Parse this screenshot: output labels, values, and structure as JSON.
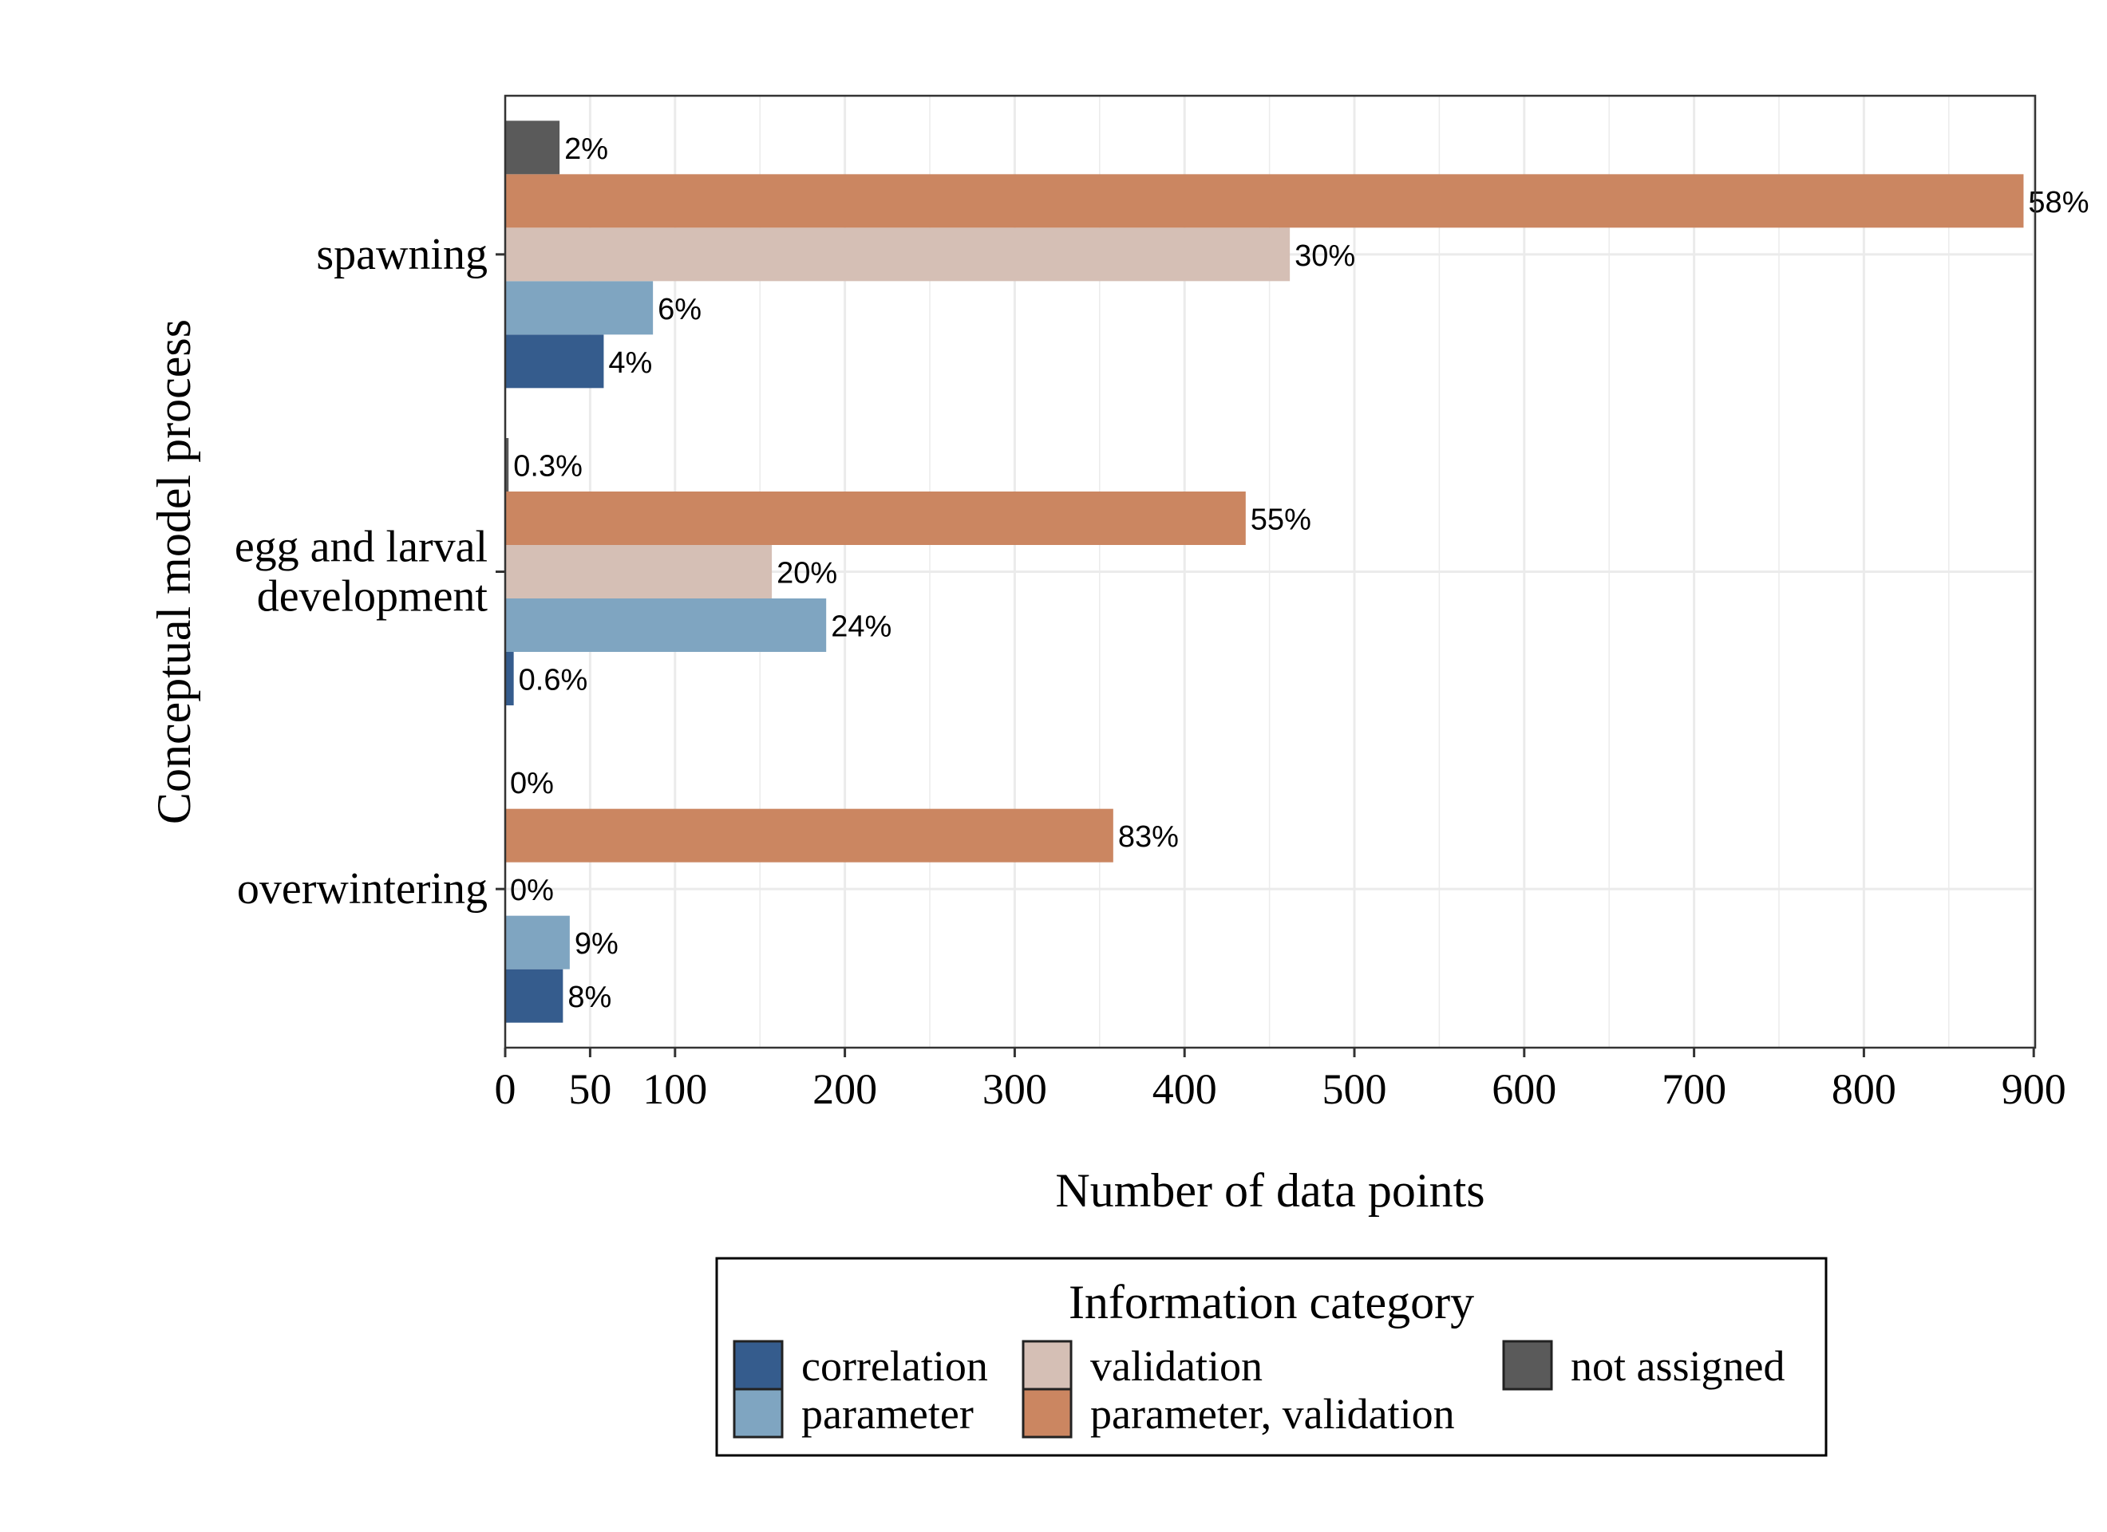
{
  "chart_data": {
    "type": "bar",
    "orientation": "horizontal",
    "categories": [
      "spawning",
      "egg and larval\ndevelopment",
      "overwintering"
    ],
    "series": [
      {
        "name": "correlation",
        "color": "#355C8D",
        "values": [
          58,
          5,
          34
        ],
        "labels": [
          "4%",
          "0.6%",
          "8%"
        ]
      },
      {
        "name": "parameter",
        "color": "#7FA5C1",
        "values": [
          87,
          189,
          38
        ],
        "labels": [
          "6%",
          "24%",
          "9%"
        ]
      },
      {
        "name": "validation",
        "color": "#D5BFB5",
        "values": [
          462,
          157,
          0
        ],
        "labels": [
          "30%",
          "20%",
          "0%"
        ]
      },
      {
        "name": "parameter, validation",
        "color": "#CB8661",
        "values": [
          894,
          436,
          358
        ],
        "labels": [
          "58%",
          "55%",
          "83%"
        ]
      },
      {
        "name": "not assigned",
        "color": "#5A5A5A",
        "values": [
          32,
          2,
          0
        ],
        "labels": [
          "2%",
          "0.3%",
          "0%"
        ]
      }
    ],
    "xlabel": "Number of data points",
    "ylabel": "Conceptual model process",
    "xlim": [
      0,
      943
    ],
    "xticks": [
      0,
      50,
      100,
      200,
      300,
      400,
      500,
      600,
      700,
      800,
      900
    ],
    "grid": true,
    "legend": {
      "title": "Information category",
      "placement": "bottom",
      "items": [
        {
          "label": "correlation",
          "color": "#355C8D"
        },
        {
          "label": "parameter",
          "color": "#7FA5C1"
        },
        {
          "label": "validation",
          "color": "#D5BFB5"
        },
        {
          "label": "parameter, validation",
          "color": "#CB8661"
        },
        {
          "label": "not assigned",
          "color": "#5A5A5A"
        }
      ]
    }
  }
}
